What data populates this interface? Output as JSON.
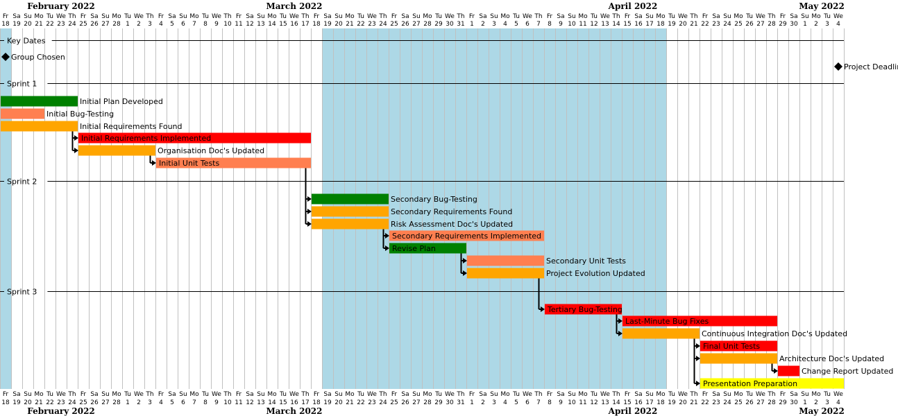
{
  "chart_data": {
    "type": "gantt",
    "timeline": {
      "start": "2022-02-18",
      "end": "2022-05-04",
      "months": [
        "February 2022",
        "March 2022",
        "April 2022",
        "May 2022"
      ],
      "day_abbrev": [
        "Su",
        "Mo",
        "Tu",
        "We",
        "Th",
        "Fr",
        "Sa"
      ]
    },
    "highlight_ranges": [
      {
        "start": "2022-02-18",
        "end": "2022-02-18"
      },
      {
        "start": "2022-03-19",
        "end": "2022-04-18"
      }
    ],
    "separators": [
      {
        "label": "Key Dates"
      },
      {
        "label": "Sprint 1"
      },
      {
        "label": "Sprint 2"
      },
      {
        "label": "Sprint 3"
      }
    ],
    "milestones": [
      {
        "label": "Group Chosen",
        "date": "2022-02-18"
      },
      {
        "label": "Project Deadline",
        "date": "2022-05-04"
      }
    ],
    "tasks": [
      {
        "id": "t1",
        "label": "Initial Plan Developed",
        "start": "2022-02-18",
        "end": "2022-02-24",
        "color": "#008000",
        "label_inside": false
      },
      {
        "id": "t2",
        "label": "Initial Bug-Testing",
        "start": "2022-02-18",
        "end": "2022-02-21",
        "color": "#ff7f50",
        "label_inside": false
      },
      {
        "id": "t3",
        "label": "Initial Requirements Found",
        "start": "2022-02-18",
        "end": "2022-02-24",
        "color": "#ffa500",
        "label_inside": false
      },
      {
        "id": "t4",
        "label": "Initial Requirements Implemented",
        "start": "2022-02-25",
        "end": "2022-03-17",
        "color": "#ff0000",
        "label_inside": true
      },
      {
        "id": "t5",
        "label": "Organisation Doc's Updated",
        "start": "2022-02-25",
        "end": "2022-03-03",
        "color": "#ffa500",
        "label_inside": false
      },
      {
        "id": "t6",
        "label": "Initial Unit Tests",
        "start": "2022-03-04",
        "end": "2022-03-17",
        "color": "#ff7f50",
        "label_inside": true
      },
      {
        "id": "t7",
        "label": "Secondary Bug-Testing",
        "start": "2022-03-18",
        "end": "2022-03-24",
        "color": "#008000",
        "label_inside": false
      },
      {
        "id": "t8",
        "label": "Secondary Requirements Found",
        "start": "2022-03-18",
        "end": "2022-03-24",
        "color": "#ffa500",
        "label_inside": false
      },
      {
        "id": "t9",
        "label": "Risk Assessment Doc's Updated",
        "start": "2022-03-18",
        "end": "2022-03-24",
        "color": "#ffa500",
        "label_inside": false
      },
      {
        "id": "t10",
        "label": "Secondary Requirements Implemented",
        "start": "2022-03-25",
        "end": "2022-04-07",
        "color": "#ff7f50",
        "label_inside": true
      },
      {
        "id": "t11",
        "label": "Revise Plan",
        "start": "2022-03-25",
        "end": "2022-03-31",
        "color": "#008000",
        "label_inside": true
      },
      {
        "id": "t12",
        "label": "Secondary Unit Tests",
        "start": "2022-04-01",
        "end": "2022-04-07",
        "color": "#ff7f50",
        "label_inside": false
      },
      {
        "id": "t13",
        "label": "Project Evolution Updated",
        "start": "2022-04-01",
        "end": "2022-04-07",
        "color": "#ffa500",
        "label_inside": false
      },
      {
        "id": "t14",
        "label": "Tertiary Bug-Testing",
        "start": "2022-04-08",
        "end": "2022-04-14",
        "color": "#ff0000",
        "label_inside": true
      },
      {
        "id": "t15",
        "label": "Last-Minute Bug Fixes",
        "start": "2022-04-15",
        "end": "2022-04-28",
        "color": "#ff0000",
        "label_inside": true
      },
      {
        "id": "t16",
        "label": "Continuous Integration Doc's Updated",
        "start": "2022-04-15",
        "end": "2022-04-21",
        "color": "#ffa500",
        "label_inside": false
      },
      {
        "id": "t17",
        "label": "Final Unit Tests",
        "start": "2022-04-22",
        "end": "2022-04-28",
        "color": "#ff0000",
        "label_inside": true
      },
      {
        "id": "t18",
        "label": "Architecture Doc's Updated",
        "start": "2022-04-22",
        "end": "2022-04-28",
        "color": "#ffa500",
        "label_inside": false
      },
      {
        "id": "t19",
        "label": "Change Report Updated",
        "start": "2022-04-29",
        "end": "2022-04-30",
        "color": "#ff0000",
        "label_inside": false
      },
      {
        "id": "t20",
        "label": "Presentation Preparation",
        "start": "2022-04-22",
        "end": "2022-05-04",
        "color": "#ffff00",
        "label_inside": true
      }
    ],
    "dependencies": [
      {
        "from": "t3",
        "to": [
          "t4",
          "t5"
        ]
      },
      {
        "from": "t5",
        "to": [
          "t6"
        ]
      },
      {
        "from": "t6",
        "to": [
          "t7",
          "t8",
          "t9"
        ]
      },
      {
        "from": "t9",
        "to": [
          "t10",
          "t11"
        ]
      },
      {
        "from": "t11",
        "to": [
          "t12",
          "t13"
        ]
      },
      {
        "from": "t13",
        "to": [
          "t14"
        ]
      },
      {
        "from": "t14",
        "to": [
          "t15",
          "t16"
        ]
      },
      {
        "from": "t16",
        "to": [
          "t17",
          "t18",
          "t20"
        ]
      },
      {
        "from": "t18",
        "to": [
          "t19"
        ]
      }
    ],
    "colors": {
      "highlight": "#add8e6",
      "grid": "#c0c0c0",
      "separator": "#000000",
      "text": "#000000"
    }
  }
}
